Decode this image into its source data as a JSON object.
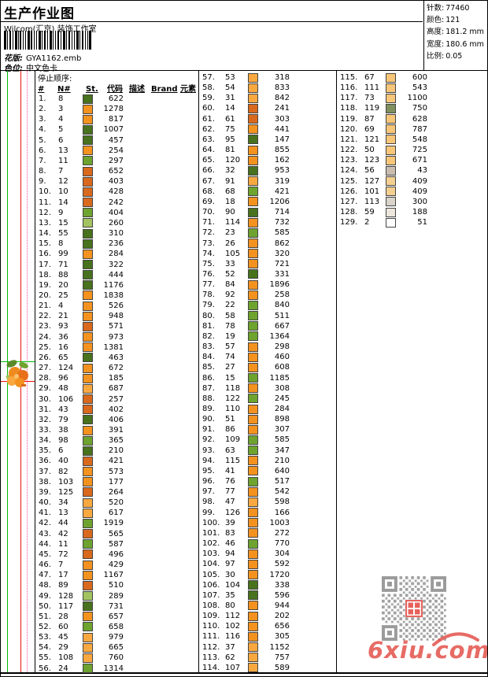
{
  "header": {
    "title": "生产作业图",
    "studio": "Wilcom(汇京) 装饰工作室",
    "design_label": "花版:",
    "design_value": "GYA1162.emb",
    "colorway_label": "色位:",
    "colorway_value": "中文色卡",
    "stats": [
      {
        "label": "针数:",
        "value": "77460"
      },
      {
        "label": "颜色:",
        "value": "121"
      },
      {
        "label": "高度:",
        "value": "181.2 mm"
      },
      {
        "label": "宽度:",
        "value": "180.6 mm"
      },
      {
        "label": "比例:",
        "value": "0.05"
      }
    ]
  },
  "table": {
    "section_title": "停止顺序:",
    "columns": [
      "#",
      "N#",
      "St.",
      "代码",
      "描述",
      "Brand",
      "元素"
    ]
  },
  "palette": {
    "dg": "#48721d",
    "mg": "#6da32e",
    "lg": "#a2c360",
    "or": "#f3921e",
    "do": "#d9691c",
    "lo": "#f9a840",
    "pe": "#f8c678",
    "gg": "#80905e",
    "gt": "#cabdb0",
    "tn": "#f3cf90",
    "lr": "#d9d3cb",
    "cr": "#ede6dd",
    "wh": "#ffffff"
  },
  "rows": [
    [
      1,
      8,
      622,
      "dg"
    ],
    [
      2,
      3,
      1278,
      "or"
    ],
    [
      3,
      4,
      817,
      "or"
    ],
    [
      4,
      5,
      1007,
      "dg"
    ],
    [
      5,
      6,
      457,
      "dg"
    ],
    [
      6,
      13,
      254,
      "or"
    ],
    [
      7,
      11,
      297,
      "mg"
    ],
    [
      8,
      7,
      652,
      "do"
    ],
    [
      9,
      12,
      403,
      "do"
    ],
    [
      10,
      10,
      428,
      "do"
    ],
    [
      11,
      14,
      242,
      "do"
    ],
    [
      12,
      9,
      404,
      "mg"
    ],
    [
      13,
      15,
      260,
      "lg"
    ],
    [
      14,
      55,
      310,
      "dg"
    ],
    [
      15,
      8,
      236,
      "dg"
    ],
    [
      16,
      99,
      284,
      "or"
    ],
    [
      17,
      71,
      322,
      "dg"
    ],
    [
      18,
      88,
      444,
      "dg"
    ],
    [
      19,
      20,
      1176,
      "dg"
    ],
    [
      20,
      25,
      1838,
      "or"
    ],
    [
      21,
      4,
      526,
      "or"
    ],
    [
      22,
      21,
      948,
      "or"
    ],
    [
      23,
      93,
      571,
      "do"
    ],
    [
      24,
      36,
      973,
      "or"
    ],
    [
      25,
      16,
      1381,
      "or"
    ],
    [
      26,
      65,
      463,
      "dg"
    ],
    [
      27,
      124,
      672,
      "or"
    ],
    [
      28,
      96,
      185,
      "or"
    ],
    [
      29,
      48,
      687,
      "lo"
    ],
    [
      30,
      106,
      257,
      "do"
    ],
    [
      31,
      43,
      402,
      "do"
    ],
    [
      32,
      79,
      406,
      "dg"
    ],
    [
      33,
      38,
      391,
      "or"
    ],
    [
      34,
      98,
      365,
      "mg"
    ],
    [
      35,
      6,
      210,
      "dg"
    ],
    [
      36,
      40,
      421,
      "do"
    ],
    [
      37,
      82,
      573,
      "or"
    ],
    [
      38,
      103,
      177,
      "or"
    ],
    [
      39,
      125,
      264,
      "do"
    ],
    [
      40,
      34,
      520,
      "lo"
    ],
    [
      41,
      13,
      617,
      "lo"
    ],
    [
      42,
      44,
      1919,
      "mg"
    ],
    [
      43,
      42,
      565,
      "do"
    ],
    [
      44,
      11,
      587,
      "mg"
    ],
    [
      45,
      72,
      496,
      "do"
    ],
    [
      46,
      7,
      429,
      "or"
    ],
    [
      47,
      17,
      1167,
      "or"
    ],
    [
      48,
      89,
      510,
      "do"
    ],
    [
      49,
      128,
      289,
      "lg"
    ],
    [
      50,
      117,
      731,
      "dg"
    ],
    [
      51,
      28,
      657,
      "or"
    ],
    [
      52,
      60,
      658,
      "mg"
    ],
    [
      53,
      45,
      979,
      "lo"
    ],
    [
      54,
      29,
      665,
      "lo"
    ],
    [
      55,
      108,
      760,
      "lo"
    ],
    [
      56,
      24,
      1314,
      "mg"
    ],
    [
      57,
      53,
      318,
      "lo"
    ],
    [
      58,
      54,
      833,
      "lo"
    ],
    [
      59,
      31,
      842,
      "lo"
    ],
    [
      60,
      14,
      241,
      "do"
    ],
    [
      61,
      61,
      303,
      "do"
    ],
    [
      62,
      75,
      441,
      "or"
    ],
    [
      63,
      95,
      147,
      "dg"
    ],
    [
      64,
      81,
      855,
      "or"
    ],
    [
      65,
      120,
      162,
      "or"
    ],
    [
      66,
      32,
      953,
      "dg"
    ],
    [
      67,
      91,
      319,
      "lo"
    ],
    [
      68,
      68,
      421,
      "mg"
    ],
    [
      69,
      18,
      1206,
      "or"
    ],
    [
      70,
      90,
      714,
      "dg"
    ],
    [
      71,
      114,
      732,
      "or"
    ],
    [
      72,
      23,
      585,
      "mg"
    ],
    [
      73,
      26,
      862,
      "or"
    ],
    [
      74,
      105,
      320,
      "or"
    ],
    [
      75,
      33,
      721,
      "or"
    ],
    [
      76,
      52,
      331,
      "dg"
    ],
    [
      77,
      84,
      1896,
      "or"
    ],
    [
      78,
      92,
      258,
      "or"
    ],
    [
      79,
      22,
      840,
      "mg"
    ],
    [
      80,
      58,
      511,
      "mg"
    ],
    [
      81,
      78,
      667,
      "mg"
    ],
    [
      82,
      19,
      1364,
      "mg"
    ],
    [
      83,
      57,
      298,
      "or"
    ],
    [
      84,
      74,
      460,
      "or"
    ],
    [
      85,
      27,
      608,
      "or"
    ],
    [
      86,
      15,
      1185,
      "mg"
    ],
    [
      87,
      118,
      308,
      "or"
    ],
    [
      88,
      122,
      245,
      "mg"
    ],
    [
      89,
      110,
      284,
      "or"
    ],
    [
      90,
      51,
      898,
      "or"
    ],
    [
      91,
      86,
      307,
      "or"
    ],
    [
      92,
      109,
      585,
      "mg"
    ],
    [
      93,
      63,
      347,
      "mg"
    ],
    [
      94,
      115,
      210,
      "or"
    ],
    [
      95,
      41,
      640,
      "or"
    ],
    [
      96,
      76,
      517,
      "mg"
    ],
    [
      97,
      77,
      542,
      "or"
    ],
    [
      98,
      47,
      598,
      "lo"
    ],
    [
      99,
      126,
      166,
      "or"
    ],
    [
      100,
      39,
      1003,
      "or"
    ],
    [
      101,
      83,
      272,
      "or"
    ],
    [
      102,
      46,
      770,
      "mg"
    ],
    [
      103,
      94,
      304,
      "or"
    ],
    [
      104,
      97,
      592,
      "or"
    ],
    [
      105,
      30,
      1720,
      "or"
    ],
    [
      106,
      104,
      338,
      "dg"
    ],
    [
      107,
      35,
      596,
      "dg"
    ],
    [
      108,
      80,
      944,
      "or"
    ],
    [
      109,
      112,
      202,
      "or"
    ],
    [
      110,
      102,
      656,
      "or"
    ],
    [
      111,
      116,
      305,
      "or"
    ],
    [
      112,
      37,
      1152,
      "lo"
    ],
    [
      113,
      62,
      757,
      "lo"
    ],
    [
      114,
      107,
      589,
      "lo"
    ],
    [
      115,
      67,
      600,
      "pe"
    ],
    [
      116,
      111,
      543,
      "pe"
    ],
    [
      117,
      73,
      1100,
      "pe"
    ],
    [
      118,
      119,
      750,
      "gg"
    ],
    [
      119,
      87,
      628,
      "pe"
    ],
    [
      120,
      69,
      787,
      "pe"
    ],
    [
      121,
      121,
      548,
      "pe"
    ],
    [
      122,
      50,
      725,
      "pe"
    ],
    [
      123,
      123,
      671,
      "pe"
    ],
    [
      124,
      56,
      43,
      "gt"
    ],
    [
      125,
      127,
      409,
      "tn"
    ],
    [
      126,
      101,
      409,
      "tn"
    ],
    [
      127,
      113,
      300,
      "lr"
    ],
    [
      128,
      59,
      188,
      "cr"
    ],
    [
      129,
      2,
      51,
      "wh"
    ]
  ],
  "column_breaks": [
    56,
    114
  ],
  "watermark": {
    "text": "6xiu.com",
    "color": "#e2473f"
  }
}
